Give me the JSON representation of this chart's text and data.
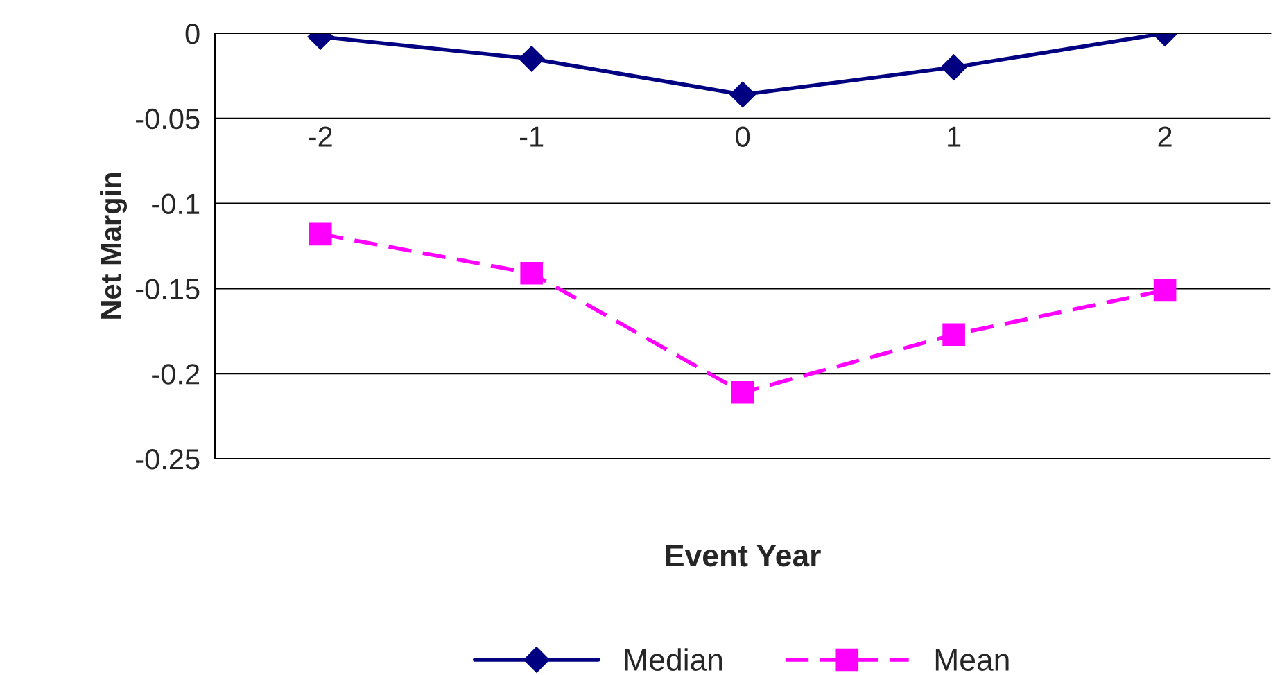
{
  "chart_data": {
    "type": "line",
    "xlabel": "Event Year",
    "ylabel": "Net Margin",
    "categories": [
      "-2",
      "-1",
      "0",
      "1",
      "2"
    ],
    "series": [
      {
        "name": "Median",
        "color": "#000080",
        "marker": "diamond",
        "line_style": "solid",
        "values": [
          -0.002,
          -0.015,
          -0.036,
          -0.02,
          0.0
        ]
      },
      {
        "name": "Mean",
        "color": "#ff00ff",
        "marker": "square",
        "line_style": "dashed",
        "values": [
          -0.118,
          -0.141,
          -0.211,
          -0.177,
          -0.151
        ]
      }
    ],
    "ylim": [
      -0.25,
      0
    ],
    "yticks": [
      -0.25,
      -0.2,
      -0.15,
      -0.1,
      -0.05,
      0
    ],
    "grid": "y",
    "legend": "bottom"
  }
}
